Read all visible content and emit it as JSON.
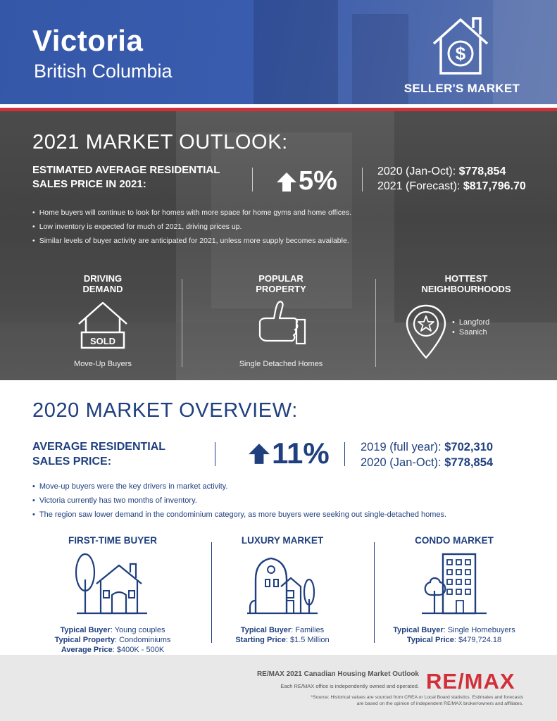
{
  "header": {
    "city": "Victoria",
    "province": "British Columbia",
    "badge": "SELLER'S MARKET"
  },
  "outlook": {
    "title": "2021 MARKET OUTLOOK:",
    "label_line1": "ESTIMATED AVERAGE RESIDENTIAL",
    "label_line2": "SALES PRICE IN 2021:",
    "percent": "5%",
    "fig1_label": "2020 (Jan-Oct):",
    "fig1_value": "$778,854",
    "fig2_label": "2021 (Forecast):",
    "fig2_value": "$817,796.70",
    "bullets": [
      "Home buyers will continue to look for homes with more space for home gyms and home offices.",
      "Low inventory is expected for much of 2021, driving prices up.",
      "Similar levels of buyer activity are anticipated for 2021, unless more supply becomes available."
    ],
    "columns": [
      {
        "head1": "DRIVING",
        "head2": "DEMAND",
        "caption": "Move-Up Buyers",
        "sign": "SOLD"
      },
      {
        "head1": "POPULAR",
        "head2": "PROPERTY",
        "caption": "Single Detached Homes"
      },
      {
        "head1": "HOTTEST",
        "head2": "NEIGHBOURHOODS",
        "items": [
          "Langford",
          "Saanich"
        ]
      }
    ]
  },
  "overview": {
    "title": "2020 MARKET OVERVIEW:",
    "label_line1": "AVERAGE RESIDENTIAL",
    "label_line2": "SALES PRICE:",
    "percent": "11%",
    "fig1_label": "2019 (full year):",
    "fig1_value": "$702,310",
    "fig2_label": "2020 (Jan-Oct):",
    "fig2_value": "$778,854",
    "bullets": [
      "Move-up buyers were the key drivers in market activity.",
      "Victoria currently has two months of inventory.",
      "The region saw lower demand in the condominium category, as more buyers were seeking out single-detached homes."
    ],
    "markets": [
      {
        "head": "FIRST-TIME BUYER",
        "rows": [
          {
            "k": "Typical Buyer",
            "v": ": Young couples"
          },
          {
            "k": "Typical Property",
            "v": ": Condominiums"
          },
          {
            "k": "Average Price",
            "v": ": $400K - 500K"
          }
        ]
      },
      {
        "head": "LUXURY MARKET",
        "rows": [
          {
            "k": "Typical Buyer",
            "v": ": Families"
          },
          {
            "k": "Starting Price",
            "v": ": $1.5 Million"
          }
        ]
      },
      {
        "head": "CONDO MARKET",
        "rows": [
          {
            "k": "Typical Buyer",
            "v": ": Single Homebuyers"
          },
          {
            "k": "Typical Price",
            "v": ": $479,724.18"
          }
        ]
      }
    ]
  },
  "footer": {
    "title": "RE/MAX 2021 Canadian Housing Market Outlook",
    "note": "Each RE/MAX office is independently owned and operated.",
    "source_line1": "*Source: Historical values are sourced from CREA or Local Board statistics. Estimates and forecasts",
    "source_line2": "are based on the opinion of independent RE/MAX broker/owners and affiliates.",
    "logo_text": "RE/MAX"
  },
  "colors": {
    "header_blue": "#3a5cae",
    "navy": "#1f3f7f",
    "accent_red": "#d12f3a",
    "footer_grey": "#e8e8e8"
  }
}
